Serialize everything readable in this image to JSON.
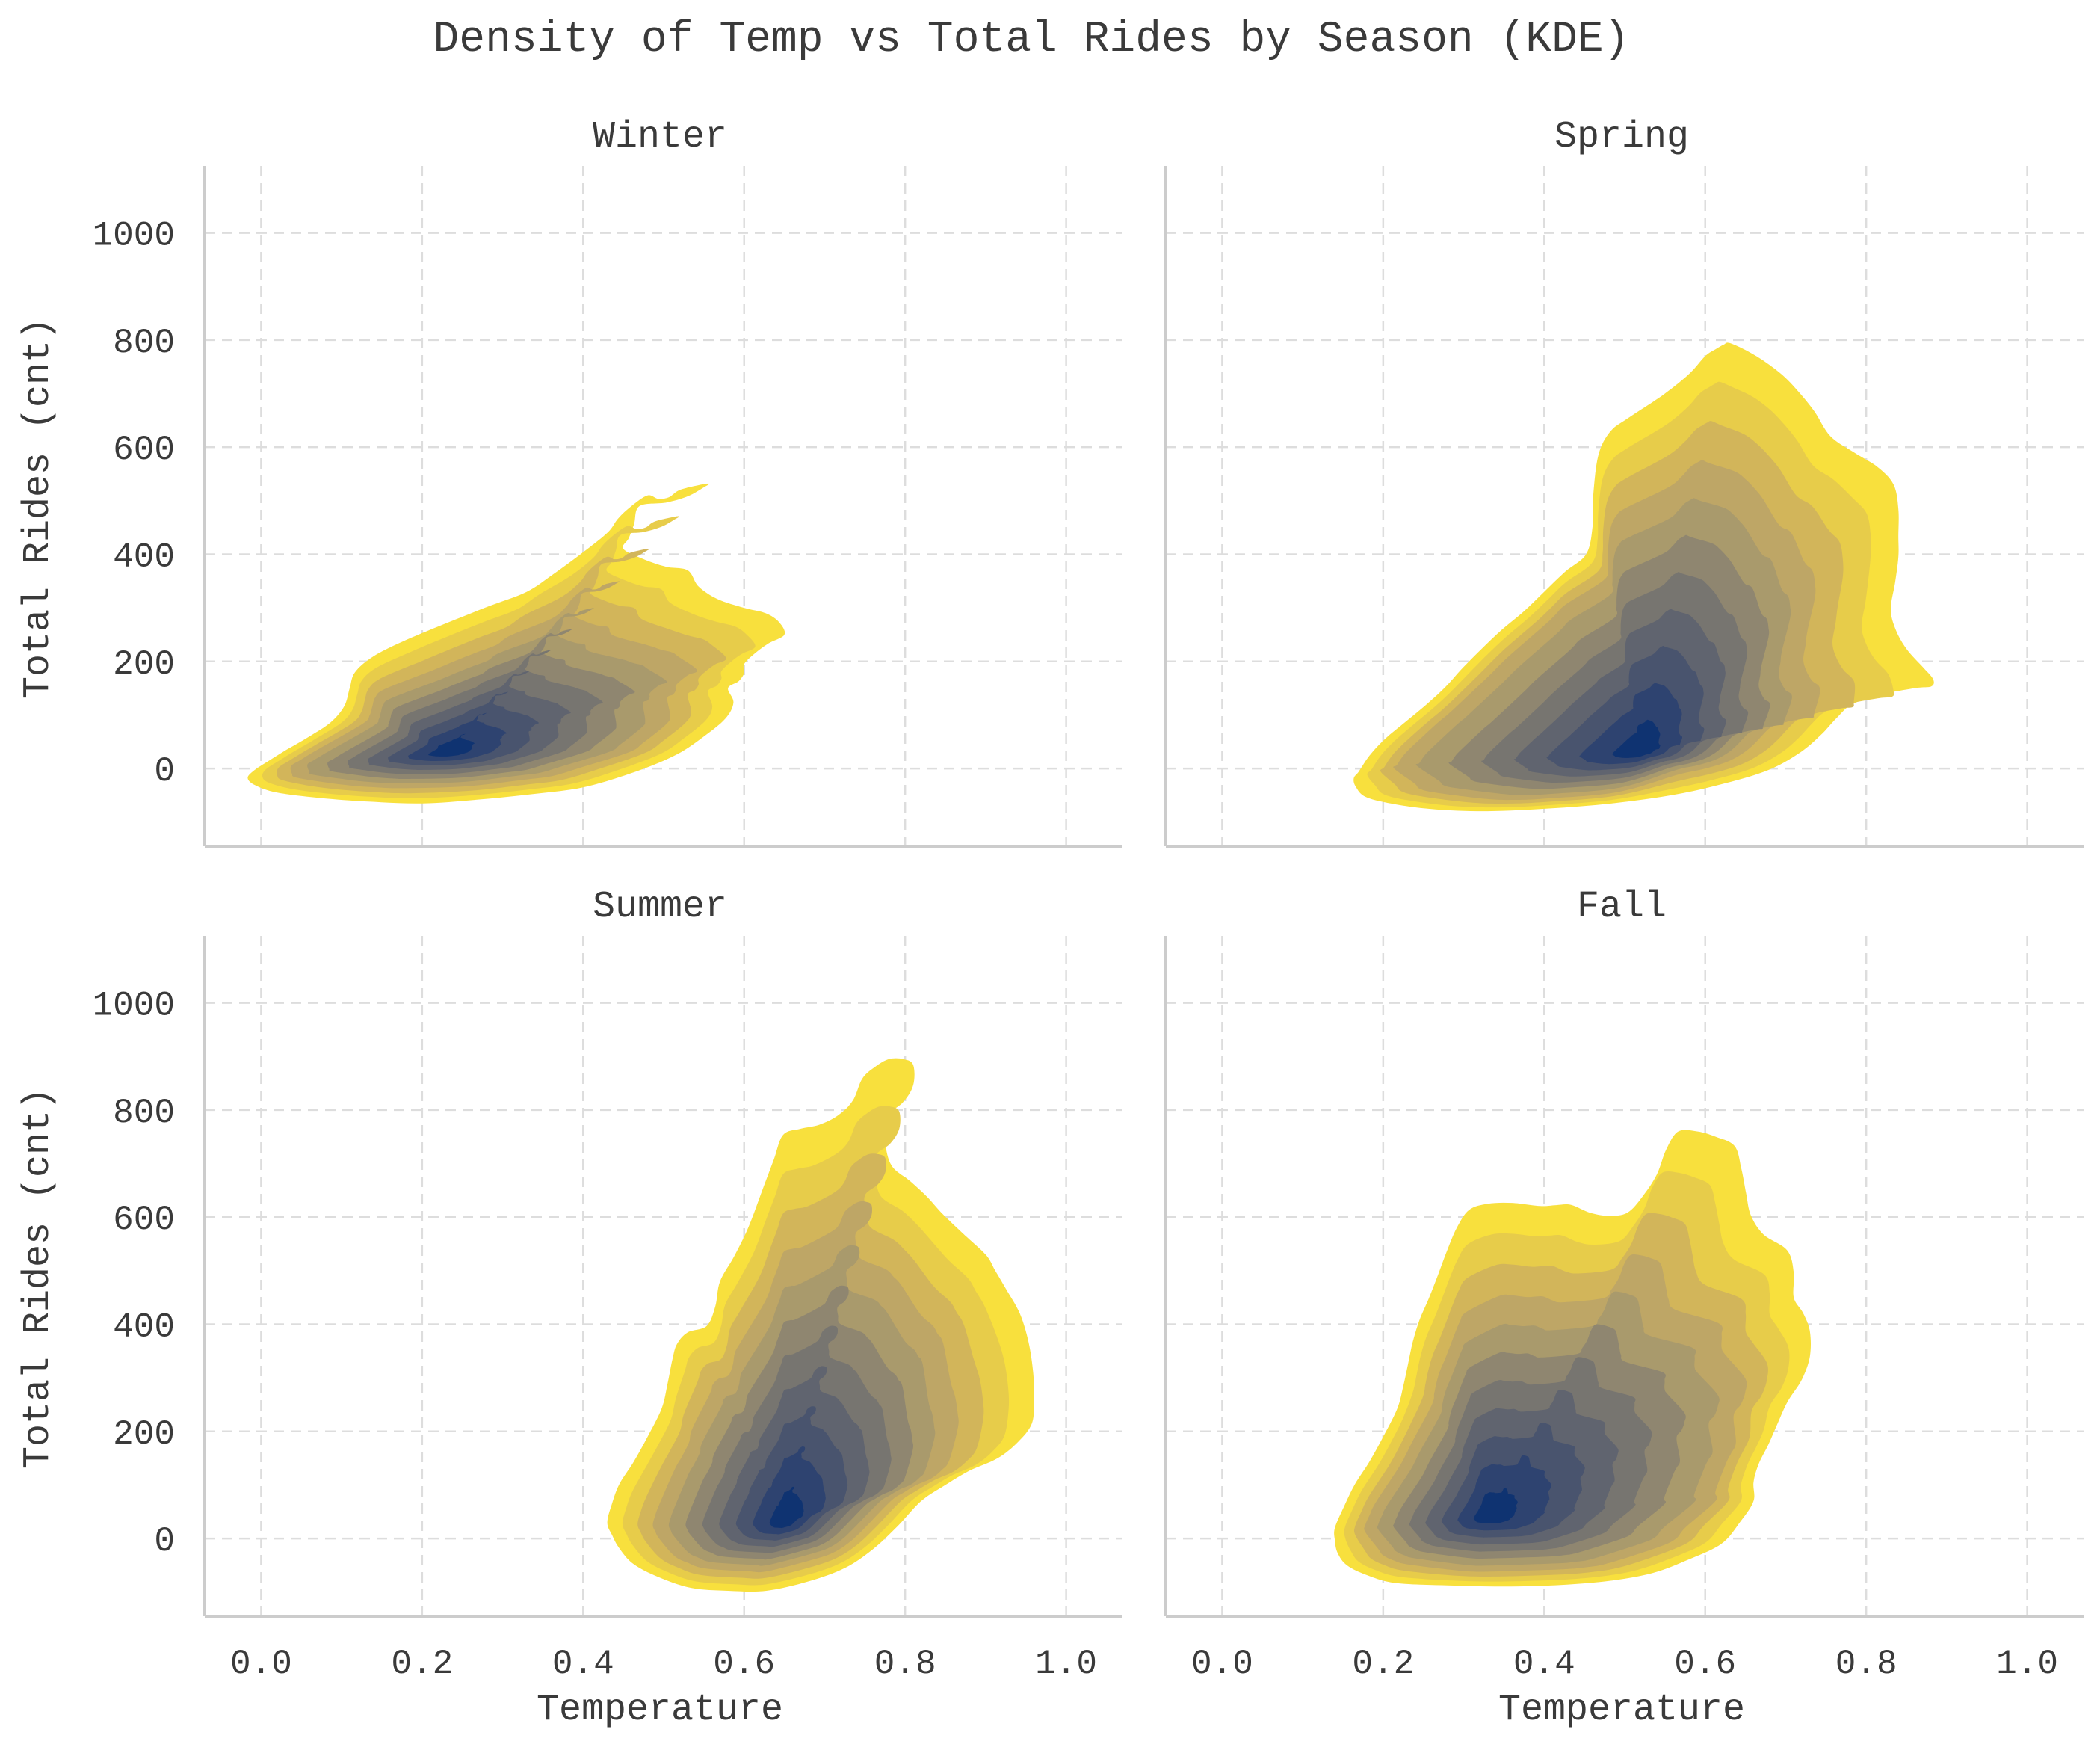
{
  "figure": {
    "title": "Density of Temp vs Total Rides by Season (KDE)",
    "xlabel": "Temperature",
    "ylabel": "Total Rides (cnt)"
  },
  "colors": {
    "levels": [
      "#f8e03d",
      "#e7cc4a",
      "#d2b55a",
      "#bea666",
      "#a99a6c",
      "#8f8670",
      "#777570",
      "#60646f",
      "#49546e",
      "#2e4370",
      "#0f3371"
    ],
    "grid": "#dddddd",
    "axis": "#cccccc",
    "text": "#3a3a3a"
  },
  "chart_data": [
    {
      "type": "heatmap",
      "title": "Winter",
      "xlim": [
        -0.07,
        1.07
      ],
      "ylim": [
        -145,
        1125
      ],
      "xticks": [
        "0.0",
        "0.2",
        "0.4",
        "0.6",
        "0.8",
        "1.0"
      ],
      "xtick_values": [
        0.0,
        0.2,
        0.4,
        0.6,
        0.8,
        1.0
      ],
      "yticks": [
        "0",
        "200",
        "400",
        "600",
        "800",
        "1000"
      ],
      "ytick_values": [
        0,
        200,
        400,
        600,
        800,
        1000
      ],
      "grid": true,
      "density_peak": [
        0.23,
        30
      ],
      "outer_contour": [
        [
          -0.01,
          -5
        ],
        [
          0.02,
          25
        ],
        [
          0.06,
          60
        ],
        [
          0.1,
          100
        ],
        [
          0.11,
          150
        ],
        [
          0.12,
          195
        ],
        [
          0.18,
          240
        ],
        [
          0.26,
          290
        ],
        [
          0.33,
          330
        ],
        [
          0.38,
          380
        ],
        [
          0.43,
          440
        ],
        [
          0.45,
          480
        ],
        [
          0.48,
          510
        ],
        [
          0.5,
          500
        ],
        [
          0.52,
          520
        ],
        [
          0.56,
          535
        ],
        [
          0.55,
          525
        ],
        [
          0.52,
          500
        ],
        [
          0.47,
          490
        ],
        [
          0.46,
          440
        ],
        [
          0.45,
          410
        ],
        [
          0.49,
          380
        ],
        [
          0.53,
          370
        ],
        [
          0.55,
          325
        ],
        [
          0.6,
          300
        ],
        [
          0.64,
          285
        ],
        [
          0.65,
          250
        ],
        [
          0.62,
          225
        ],
        [
          0.6,
          195
        ],
        [
          0.6,
          170
        ],
        [
          0.58,
          150
        ],
        [
          0.59,
          110
        ],
        [
          0.55,
          60
        ],
        [
          0.5,
          10
        ],
        [
          0.4,
          -35
        ],
        [
          0.3,
          -55
        ],
        [
          0.2,
          -65
        ],
        [
          0.1,
          -60
        ],
        [
          0.02,
          -45
        ],
        [
          -0.02,
          -25
        ]
      ],
      "inner_contour": [
        [
          0.09,
          15
        ],
        [
          0.17,
          80
        ],
        [
          0.25,
          120
        ],
        [
          0.32,
          145
        ],
        [
          0.38,
          135
        ],
        [
          0.42,
          110
        ],
        [
          0.42,
          70
        ],
        [
          0.39,
          35
        ],
        [
          0.32,
          10
        ],
        [
          0.24,
          -5
        ],
        [
          0.15,
          -5
        ],
        [
          0.1,
          0
        ]
      ]
    },
    {
      "type": "heatmap",
      "title": "Spring",
      "xlim": [
        -0.07,
        1.07
      ],
      "ylim": [
        -145,
        1125
      ],
      "xticks": [
        "0.0",
        "0.2",
        "0.4",
        "0.6",
        "0.8",
        "1.0"
      ],
      "xtick_values": [
        0.0,
        0.2,
        0.4,
        0.6,
        0.8,
        1.0
      ],
      "yticks": [
        "0",
        "200",
        "400",
        "600",
        "800",
        "1000"
      ],
      "ytick_values": [
        0,
        200,
        400,
        600,
        800,
        1000
      ],
      "grid": true,
      "density_peak": [
        0.52,
        30
      ],
      "outer_contour": [
        [
          0.17,
          -5
        ],
        [
          0.19,
          40
        ],
        [
          0.23,
          90
        ],
        [
          0.27,
          140
        ],
        [
          0.3,
          190
        ],
        [
          0.34,
          250
        ],
        [
          0.38,
          300
        ],
        [
          0.42,
          360
        ],
        [
          0.46,
          410
        ],
        [
          0.46,
          500
        ],
        [
          0.47,
          615
        ],
        [
          0.5,
          650
        ],
        [
          0.57,
          720
        ],
        [
          0.6,
          770
        ],
        [
          0.62,
          790
        ],
        [
          0.63,
          795
        ],
        [
          0.66,
          775
        ],
        [
          0.7,
          730
        ],
        [
          0.73,
          680
        ],
        [
          0.76,
          610
        ],
        [
          0.81,
          570
        ],
        [
          0.84,
          520
        ],
        [
          0.84,
          440
        ],
        [
          0.84,
          380
        ],
        [
          0.83,
          300
        ],
        [
          0.84,
          240
        ],
        [
          0.87,
          190
        ],
        [
          0.89,
          155
        ],
        [
          0.86,
          150
        ],
        [
          0.79,
          130
        ],
        [
          0.76,
          90
        ],
        [
          0.73,
          40
        ],
        [
          0.67,
          -10
        ],
        [
          0.58,
          -45
        ],
        [
          0.46,
          -70
        ],
        [
          0.34,
          -80
        ],
        [
          0.24,
          -75
        ],
        [
          0.18,
          -55
        ],
        [
          0.16,
          -25
        ]
      ],
      "inner_contour": [
        [
          0.27,
          20
        ],
        [
          0.31,
          80
        ],
        [
          0.37,
          160
        ],
        [
          0.43,
          240
        ],
        [
          0.5,
          300
        ],
        [
          0.56,
          330
        ],
        [
          0.6,
          320
        ],
        [
          0.62,
          270
        ],
        [
          0.62,
          190
        ],
        [
          0.6,
          100
        ],
        [
          0.57,
          30
        ],
        [
          0.5,
          -20
        ],
        [
          0.4,
          -35
        ],
        [
          0.32,
          -20
        ]
      ]
    },
    {
      "type": "heatmap",
      "title": "Summer",
      "xlim": [
        -0.07,
        1.07
      ],
      "ylim": [
        -145,
        1125
      ],
      "xticks": [
        "0.0",
        "0.2",
        "0.4",
        "0.6",
        "0.8",
        "1.0"
      ],
      "xtick_values": [
        0.0,
        0.2,
        0.4,
        0.6,
        0.8,
        1.0
      ],
      "yticks": [
        "0",
        "200",
        "400",
        "600",
        "800",
        "1000"
      ],
      "ytick_values": [
        0,
        200,
        400,
        600,
        800,
        1000
      ],
      "grid": true,
      "density_peak": [
        0.65,
        30
      ],
      "outer_contour": [
        [
          0.43,
          30
        ],
        [
          0.44,
          90
        ],
        [
          0.47,
          160
        ],
        [
          0.5,
          250
        ],
        [
          0.51,
          330
        ],
        [
          0.52,
          380
        ],
        [
          0.56,
          400
        ],
        [
          0.57,
          480
        ],
        [
          0.6,
          560
        ],
        [
          0.63,
          680
        ],
        [
          0.65,
          760
        ],
        [
          0.69,
          770
        ],
        [
          0.73,
          800
        ],
        [
          0.75,
          870
        ],
        [
          0.78,
          895
        ],
        [
          0.81,
          895
        ],
        [
          0.81,
          830
        ],
        [
          0.77,
          780
        ],
        [
          0.78,
          700
        ],
        [
          0.82,
          650
        ],
        [
          0.85,
          600
        ],
        [
          0.9,
          530
        ],
        [
          0.92,
          480
        ],
        [
          0.95,
          400
        ],
        [
          0.96,
          300
        ],
        [
          0.96,
          220
        ],
        [
          0.93,
          160
        ],
        [
          0.87,
          120
        ],
        [
          0.82,
          70
        ],
        [
          0.77,
          -10
        ],
        [
          0.71,
          -70
        ],
        [
          0.62,
          -100
        ],
        [
          0.54,
          -95
        ],
        [
          0.47,
          -60
        ],
        [
          0.44,
          -10
        ]
      ],
      "inner_contour": [
        [
          0.55,
          20
        ],
        [
          0.57,
          110
        ],
        [
          0.61,
          200
        ],
        [
          0.65,
          290
        ],
        [
          0.7,
          330
        ],
        [
          0.74,
          320
        ],
        [
          0.76,
          250
        ],
        [
          0.76,
          150
        ],
        [
          0.74,
          70
        ],
        [
          0.7,
          10
        ],
        [
          0.63,
          -20
        ],
        [
          0.57,
          -15
        ]
      ]
    },
    {
      "type": "heatmap",
      "title": "Fall",
      "xlim": [
        -0.07,
        1.07
      ],
      "ylim": [
        -145,
        1125
      ],
      "xticks": [
        "0.0",
        "0.2",
        "0.4",
        "0.6",
        "0.8",
        "1.0"
      ],
      "xtick_values": [
        0.0,
        0.2,
        0.4,
        0.6,
        0.8,
        1.0
      ],
      "yticks": [
        "0",
        "200",
        "400",
        "600",
        "800",
        "1000"
      ],
      "ytick_values": [
        0,
        200,
        400,
        600,
        800,
        1000
      ],
      "grid": true,
      "density_peak": [
        0.33,
        40
      ],
      "outer_contour": [
        [
          0.14,
          20
        ],
        [
          0.16,
          90
        ],
        [
          0.19,
          160
        ],
        [
          0.22,
          250
        ],
        [
          0.23,
          320
        ],
        [
          0.24,
          390
        ],
        [
          0.26,
          460
        ],
        [
          0.28,
          540
        ],
        [
          0.3,
          610
        ],
        [
          0.34,
          630
        ],
        [
          0.4,
          620
        ],
        [
          0.43,
          625
        ],
        [
          0.47,
          600
        ],
        [
          0.51,
          610
        ],
        [
          0.54,
          680
        ],
        [
          0.56,
          760
        ],
        [
          0.6,
          760
        ],
        [
          0.64,
          730
        ],
        [
          0.65,
          650
        ],
        [
          0.66,
          580
        ],
        [
          0.71,
          530
        ],
        [
          0.71,
          450
        ],
        [
          0.73,
          400
        ],
        [
          0.73,
          320
        ],
        [
          0.7,
          250
        ],
        [
          0.68,
          180
        ],
        [
          0.66,
          120
        ],
        [
          0.66,
          60
        ],
        [
          0.62,
          -10
        ],
        [
          0.55,
          -60
        ],
        [
          0.46,
          -85
        ],
        [
          0.34,
          -90
        ],
        [
          0.22,
          -85
        ],
        [
          0.16,
          -60
        ],
        [
          0.14,
          -20
        ]
      ],
      "inner_contour": [
        [
          0.22,
          30
        ],
        [
          0.26,
          120
        ],
        [
          0.3,
          210
        ],
        [
          0.36,
          260
        ],
        [
          0.44,
          270
        ],
        [
          0.52,
          250
        ],
        [
          0.56,
          200
        ],
        [
          0.58,
          140
        ],
        [
          0.56,
          70
        ],
        [
          0.5,
          10
        ],
        [
          0.42,
          -25
        ],
        [
          0.32,
          -30
        ],
        [
          0.25,
          -10
        ]
      ]
    }
  ]
}
